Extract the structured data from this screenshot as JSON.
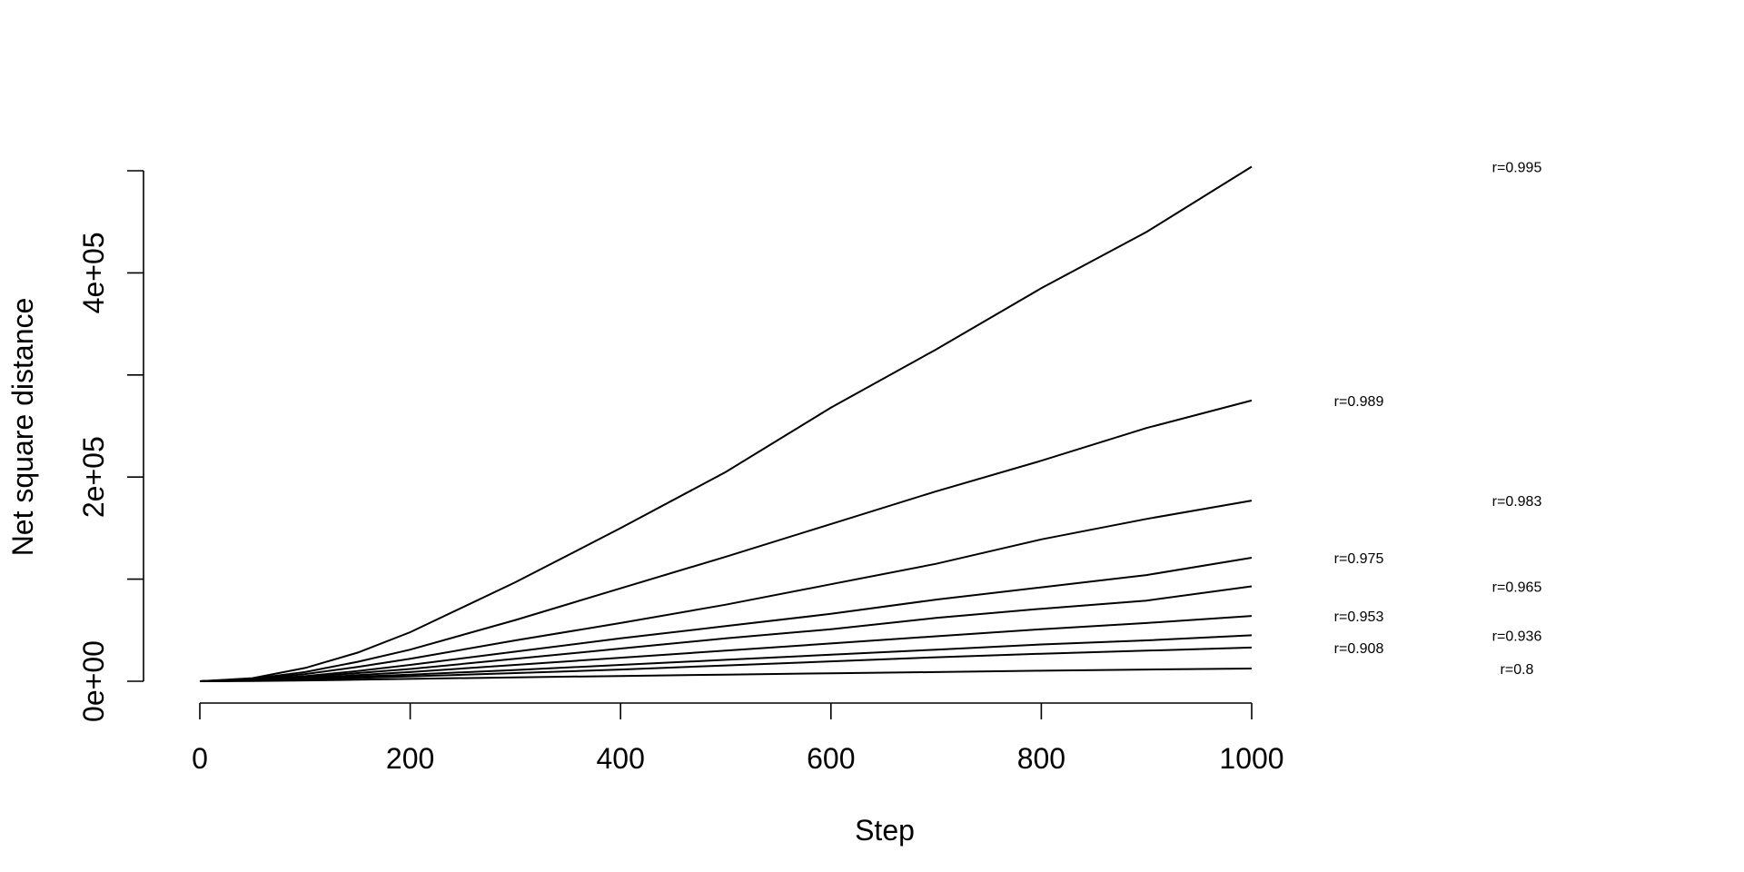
{
  "chart_data": {
    "type": "line",
    "xlabel": "Step",
    "ylabel": "Net square distance",
    "xlim": [
      0,
      1000
    ],
    "ylim": [
      0,
      500000
    ],
    "x_ticks": [
      0,
      200,
      400,
      600,
      800,
      1000
    ],
    "x_tick_labels": [
      "0",
      "200",
      "400",
      "600",
      "800",
      "1000"
    ],
    "y_ticks": [
      0,
      100000,
      200000,
      300000,
      400000,
      500000
    ],
    "y_tick_labels": [
      "0e+00",
      "",
      "2e+05",
      "",
      "4e+05",
      ""
    ],
    "grid": false,
    "legend": "none",
    "series_labels": [
      "r=0.995",
      "r=0.989",
      "r=0.983",
      "r=0.975",
      "r=0.965",
      "r=0.953",
      "r=0.936",
      "r=0.908",
      "r=0.8"
    ],
    "series": [
      {
        "label": "r=0.995",
        "x": [
          0,
          50,
          100,
          150,
          200,
          300,
          400,
          500,
          600,
          700,
          800,
          900,
          1000
        ],
        "values": [
          0,
          3000,
          13000,
          28000,
          48000,
          97000,
          150000,
          205000,
          268000,
          325000,
          385000,
          440000,
          504000
        ]
      },
      {
        "label": "r=0.989",
        "x": [
          0,
          50,
          100,
          150,
          200,
          300,
          400,
          500,
          600,
          700,
          800,
          900,
          1000
        ],
        "values": [
          0,
          2500,
          9000,
          19000,
          31000,
          60000,
          91000,
          122000,
          154000,
          186000,
          216000,
          248000,
          275000
        ]
      },
      {
        "label": "r=0.983",
        "x": [
          0,
          50,
          100,
          150,
          200,
          300,
          400,
          500,
          600,
          700,
          800,
          900,
          1000
        ],
        "values": [
          0,
          2000,
          7000,
          14000,
          22000,
          40000,
          57000,
          75000,
          95000,
          115000,
          139000,
          159000,
          177000
        ]
      },
      {
        "label": "r=0.975",
        "x": [
          0,
          50,
          100,
          150,
          200,
          300,
          400,
          500,
          600,
          700,
          800,
          900,
          1000
        ],
        "values": [
          0,
          1500,
          5000,
          10000,
          16000,
          29000,
          42000,
          54000,
          66000,
          80000,
          92000,
          104000,
          121000
        ]
      },
      {
        "label": "r=0.965",
        "x": [
          0,
          50,
          100,
          150,
          200,
          300,
          400,
          500,
          600,
          700,
          800,
          900,
          1000
        ],
        "values": [
          0,
          1200,
          4000,
          8000,
          12000,
          22000,
          32000,
          42000,
          51000,
          62000,
          71000,
          79000,
          93000
        ]
      },
      {
        "label": "r=0.953",
        "x": [
          0,
          50,
          100,
          150,
          200,
          300,
          400,
          500,
          600,
          700,
          800,
          900,
          1000
        ],
        "values": [
          0,
          900,
          3000,
          6000,
          9000,
          16000,
          23000,
          30000,
          37000,
          44000,
          51000,
          57000,
          64000
        ]
      },
      {
        "label": "r=0.936",
        "x": [
          0,
          50,
          100,
          150,
          200,
          300,
          400,
          500,
          600,
          700,
          800,
          900,
          1000
        ],
        "values": [
          0,
          700,
          2200,
          4500,
          6500,
          11000,
          16000,
          21000,
          26000,
          31000,
          36000,
          40000,
          45000
        ]
      },
      {
        "label": "r=0.908",
        "x": [
          0,
          50,
          100,
          150,
          200,
          300,
          400,
          500,
          600,
          700,
          800,
          900,
          1000
        ],
        "values": [
          0,
          500,
          1600,
          3200,
          4800,
          8000,
          11500,
          15500,
          19500,
          23500,
          27000,
          30000,
          33000
        ]
      },
      {
        "label": "r=0.8",
        "x": [
          0,
          50,
          100,
          150,
          200,
          300,
          400,
          500,
          600,
          700,
          800,
          900,
          1000
        ],
        "values": [
          0,
          250,
          800,
          1500,
          2300,
          3800,
          5200,
          6500,
          7800,
          9000,
          10300,
          11500,
          12500
        ]
      }
    ]
  }
}
